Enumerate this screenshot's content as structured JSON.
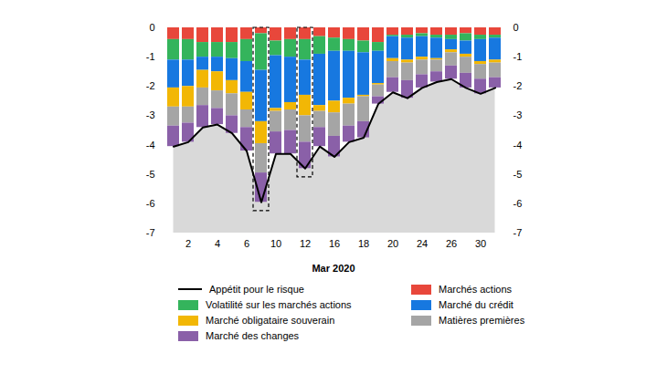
{
  "chart_data": {
    "type": "bar",
    "stacked": true,
    "x_label": "Mar 2020",
    "categories": [
      null,
      "2",
      null,
      "4",
      null,
      "6",
      null,
      "10",
      null,
      "12",
      null,
      "16",
      null,
      "18",
      null,
      "20",
      null,
      "24",
      null,
      "26",
      null,
      "30",
      null
    ],
    "ylim": [
      -7,
      0
    ],
    "yticks": [
      0,
      -1,
      -2,
      -3,
      -4,
      -5,
      -6,
      -7
    ],
    "highlight": [
      6,
      9
    ],
    "series": [
      {
        "name": "Appétit pour le risque",
        "type": "line",
        "color": "#000000",
        "values": [
          -4.05,
          -3.9,
          -3.4,
          -3.3,
          -3.6,
          -4.2,
          -5.95,
          -4.3,
          -4.3,
          -4.8,
          -4.05,
          -4.4,
          -3.9,
          -3.75,
          -2.6,
          -2.2,
          -2.4,
          -2.05,
          -1.85,
          -1.75,
          -2.05,
          -2.25,
          -2.05
        ]
      },
      {
        "name": "Marchés actions",
        "type": "bar",
        "color": "#e8473b",
        "values": [
          -0.4,
          -0.4,
          -0.5,
          -0.5,
          -0.5,
          -0.4,
          -0.2,
          -0.45,
          -0.4,
          -0.4,
          -0.3,
          -0.35,
          -0.4,
          -0.45,
          -0.5,
          -0.25,
          -0.25,
          -0.2,
          -0.25,
          -0.25,
          -0.2,
          -0.25,
          -0.25
        ]
      },
      {
        "name": "Volatilité sur les marchés actions",
        "type": "bar",
        "color": "#34b45c",
        "values": [
          -0.7,
          -0.7,
          -0.5,
          -0.5,
          -0.55,
          -0.75,
          -1.25,
          -0.5,
          -0.6,
          -0.7,
          -0.6,
          -0.45,
          -0.4,
          -0.4,
          -0.3,
          -0.05,
          -0.1,
          -0.1,
          -0.1,
          -0.15,
          -0.25,
          -0.15,
          -0.1
        ]
      },
      {
        "name": "Marché du crédit",
        "type": "bar",
        "color": "#1778e0",
        "values": [
          -0.95,
          -0.9,
          -0.45,
          -0.5,
          -0.75,
          -1.05,
          -1.75,
          -1.8,
          -1.55,
          -1.2,
          -1.75,
          -1.7,
          -1.6,
          -1.45,
          -1.1,
          -0.75,
          -0.75,
          -0.7,
          -0.7,
          -0.35,
          -0.45,
          -0.75,
          -0.75
        ]
      },
      {
        "name": "Marché obligataire souverain",
        "type": "bar",
        "color": "#f2b705",
        "values": [
          -0.65,
          -0.7,
          -0.6,
          -0.65,
          -0.45,
          -0.6,
          -0.75,
          -0.1,
          -0.25,
          -0.7,
          -0.2,
          -0.4,
          -0.2,
          -0.05,
          -0.05,
          -0.1,
          -0.1,
          -0.1,
          -0.05,
          -0.1,
          -0.1,
          -0.1,
          -0.1
        ]
      },
      {
        "name": "Matières premières",
        "type": "bar",
        "color": "#a5a5a5",
        "values": [
          -0.65,
          -0.55,
          -0.6,
          -0.6,
          -0.75,
          -0.6,
          -1.0,
          -0.7,
          -0.7,
          -0.9,
          -0.55,
          -0.8,
          -0.75,
          -0.85,
          -0.4,
          -0.55,
          -0.6,
          -0.5,
          -0.4,
          -0.45,
          -0.55,
          -0.5,
          -0.5
        ]
      },
      {
        "name": "Marché des changes",
        "type": "bar",
        "color": "#8a60a8",
        "values": [
          -0.7,
          -0.65,
          -0.75,
          -0.55,
          -0.6,
          -0.8,
          -1.0,
          -0.75,
          -0.8,
          -0.9,
          -0.65,
          -0.7,
          -0.55,
          -0.55,
          -0.25,
          -0.5,
          -0.6,
          -0.45,
          -0.35,
          -0.45,
          -0.5,
          -0.5,
          -0.35
        ]
      }
    ]
  }
}
